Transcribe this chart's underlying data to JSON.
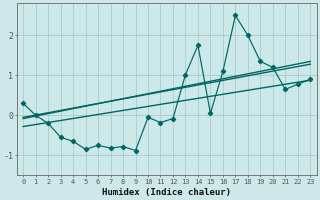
{
  "xlabel": "Humidex (Indice chaleur)",
  "bg_color": "#cce8e8",
  "grid_color": "#aacccc",
  "line_color": "#006666",
  "xlim": [
    -0.5,
    23.5
  ],
  "ylim": [
    -1.5,
    2.8
  ],
  "yticks": [
    -1,
    0,
    1,
    2
  ],
  "xticks": [
    0,
    1,
    2,
    3,
    4,
    5,
    6,
    7,
    8,
    9,
    10,
    11,
    12,
    13,
    14,
    15,
    16,
    17,
    18,
    19,
    20,
    21,
    22,
    23
  ],
  "data_x": [
    0,
    1,
    2,
    3,
    4,
    5,
    6,
    7,
    8,
    9,
    10,
    11,
    12,
    13,
    14,
    15,
    16,
    17,
    18,
    19,
    20,
    21,
    22,
    23
  ],
  "data_y": [
    0.3,
    0.0,
    -0.2,
    -0.55,
    -0.65,
    -0.85,
    -0.75,
    -0.82,
    -0.78,
    -0.88,
    -0.05,
    -0.18,
    -0.08,
    1.02,
    1.75,
    0.05,
    1.1,
    2.5,
    2.0,
    1.35,
    1.2,
    0.65,
    0.78,
    0.9
  ],
  "trend1_x": [
    0,
    23
  ],
  "trend1_y": [
    -0.08,
    1.35
  ],
  "trend2_x": [
    0,
    23
  ],
  "trend2_y": [
    -0.28,
    0.88
  ],
  "trend3_x": [
    0,
    23
  ],
  "trend3_y": [
    -0.05,
    1.28
  ]
}
